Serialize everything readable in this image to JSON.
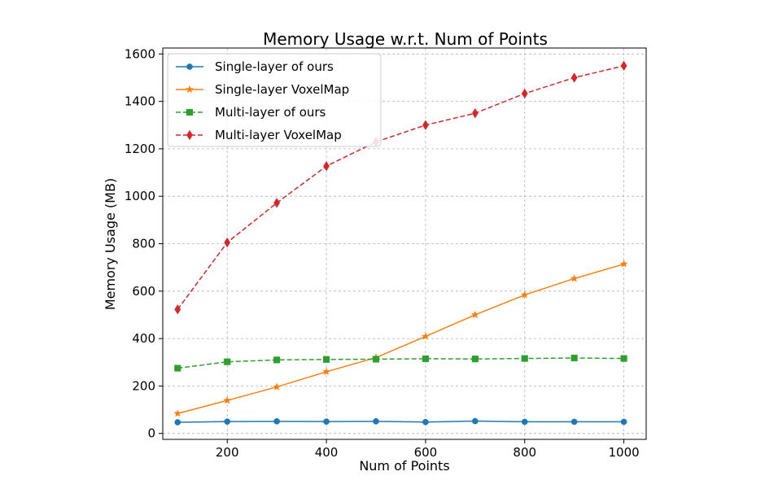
{
  "chart_data": {
    "type": "line",
    "title": "Memory Usage w.r.t. Num of Points",
    "xlabel": "Num of Points",
    "ylabel": "Memory Usage (MB)",
    "xlim": [
      70,
      1045
    ],
    "ylim": [
      -25,
      1625
    ],
    "xticks": [
      200,
      400,
      600,
      800,
      1000
    ],
    "yticks": [
      0,
      200,
      400,
      600,
      800,
      1000,
      1200,
      1400,
      1600
    ],
    "grid": true,
    "legend_position": "upper-left",
    "x": [
      100,
      200,
      300,
      400,
      500,
      600,
      700,
      800,
      900,
      1000
    ],
    "series": [
      {
        "name": "Single-layer of ours",
        "color": "#1f77b4",
        "linestyle": "solid",
        "marker": "circle",
        "values": [
          47,
          50,
          51,
          50,
          51,
          48,
          52,
          49,
          49,
          49
        ]
      },
      {
        "name": "Single-layer VoxelMap",
        "color": "#ff7f0e",
        "linestyle": "solid",
        "marker": "star",
        "values": [
          84,
          139,
          196,
          260,
          320,
          409,
          500,
          584,
          653,
          714
        ]
      },
      {
        "name": "Multi-layer of ours",
        "color": "#2ca02c",
        "linestyle": "dashed",
        "marker": "square",
        "values": [
          275,
          302,
          310,
          312,
          313,
          315,
          314,
          316,
          318,
          316
        ]
      },
      {
        "name": "Multi-layer VoxelMap",
        "color": "#d62728",
        "linestyle": "dashed",
        "marker": "diamond",
        "values": [
          523,
          805,
          972,
          1127,
          1229,
          1300,
          1350,
          1433,
          1500,
          1550
        ]
      }
    ]
  }
}
